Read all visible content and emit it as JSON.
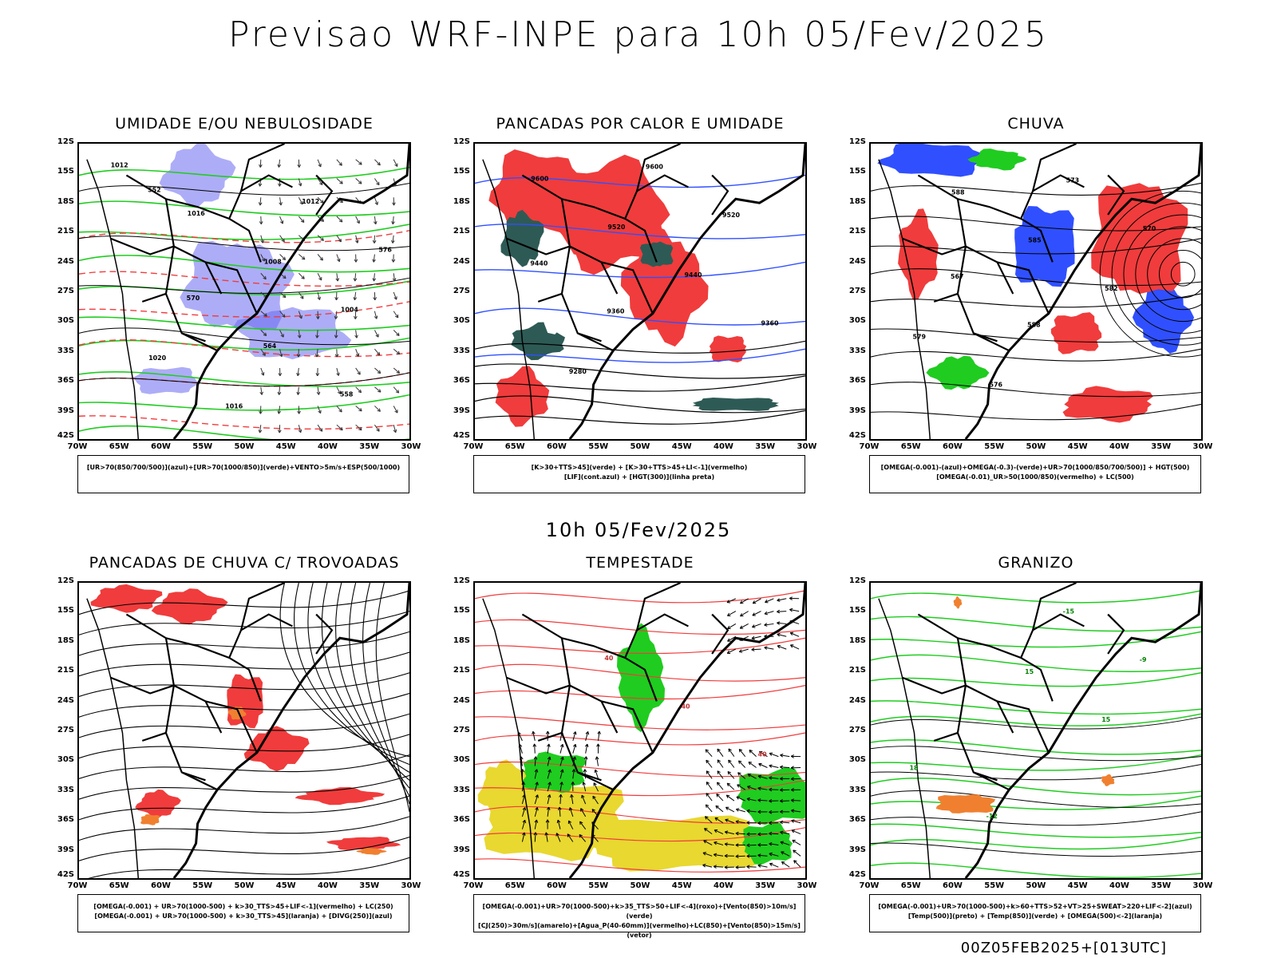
{
  "main_title": "Previsao WRF-INPE  para 10h 05/Fev/2025",
  "mid_title": "10h 05/Fev/2025",
  "footer": "00Z05FEB2025+[013UTC]",
  "axis": {
    "lat_labels": [
      "12S",
      "15S",
      "18S",
      "21S",
      "24S",
      "27S",
      "30S",
      "33S",
      "36S",
      "39S",
      "42S"
    ],
    "lon_labels": [
      "70W",
      "65W",
      "60W",
      "55W",
      "50W",
      "45W",
      "40W",
      "35W",
      "30W"
    ]
  },
  "colors": {
    "humid_blue": "#6a6af0",
    "humid_green": "#20cc20",
    "red": "#f03c3c",
    "dark_teal": "#2e5a55",
    "blue_line": "#3050ff",
    "orange": "#f08030",
    "yellow": "#e8d830"
  },
  "panels": [
    {
      "title": "UMIDADE E/OU NEBULOSIDADE",
      "legend": [
        "[UR>70(850/700/500)](azul)+[UR>70(1000/850)](verde)+VENTO>5m/s+ESP(500/1000)"
      ],
      "labels": [
        "1012",
        "1016",
        "1008",
        "1004",
        "1020",
        "1016",
        "1012",
        "576",
        "570",
        "564",
        "558",
        "552"
      ]
    },
    {
      "title": "PANCADAS POR CALOR E UMIDADE",
      "legend": [
        "[K>30+TTS>45](verde) + [K>30+TTS>45+LI<-1](vermelho)",
        "[LIF](cont.azul) + [HGT(300)](linha preta)"
      ],
      "labels": [
        "9600",
        "9520",
        "9440",
        "9360",
        "9280",
        "9600",
        "9520",
        "9440",
        "9360"
      ]
    },
    {
      "title": "CHUVA",
      "legend": [
        "[OMEGA(-0.001)-(azul)+OMEGA(-0.3)-(verde)+UR>70(1000/850/700/500)] + HGT(500)",
        "[OMEGA(-0.01)_UR>50(1000/850)(vermelho) + LC(500)"
      ],
      "labels": [
        "588",
        "585",
        "582",
        "579",
        "576",
        "573",
        "570",
        "567",
        "588"
      ]
    },
    {
      "title": "PANCADAS DE CHUVA C/ TROVOADAS",
      "legend": [
        "[OMEGA(-0.001) + UR>70(1000-500) + k>30_TTS>45+LIF<-1](vermelho) + LC(250)",
        "[OMEGA(-0.001) + UR>70(1000-500) + k>30_TTS>45](laranja) + [DIVG(250)](azul)"
      ],
      "labels": []
    },
    {
      "title": "TEMPESTADE",
      "legend": [
        "[OMEGA(-0.001)+UR>70(1000-500)+k>35_TTS>50+LIF<-4](roxo)+[Vento(850)>10m/s](verde)",
        "[CJ(250)>30m/s](amarelo)+[Agua_P(40-60mm)](vermelho)+LC(850)+[Vento(850)>15m/s](vetor)"
      ],
      "labels": [
        "40",
        "40",
        "40"
      ]
    },
    {
      "title": "GRANIZO",
      "legend": [
        "[OMEGA(-0.001)+UR>70(1000-500)+k>60+TTS>52+VT>25+SWEAT>220+LIF<-2](azul)",
        "[Temp(500)](preto) + [Temp(850)](verde) + [OMEGA(500)<-2](laranja)"
      ],
      "labels": [
        "15",
        "15",
        "18",
        "-12",
        "-15",
        "-9"
      ]
    }
  ]
}
